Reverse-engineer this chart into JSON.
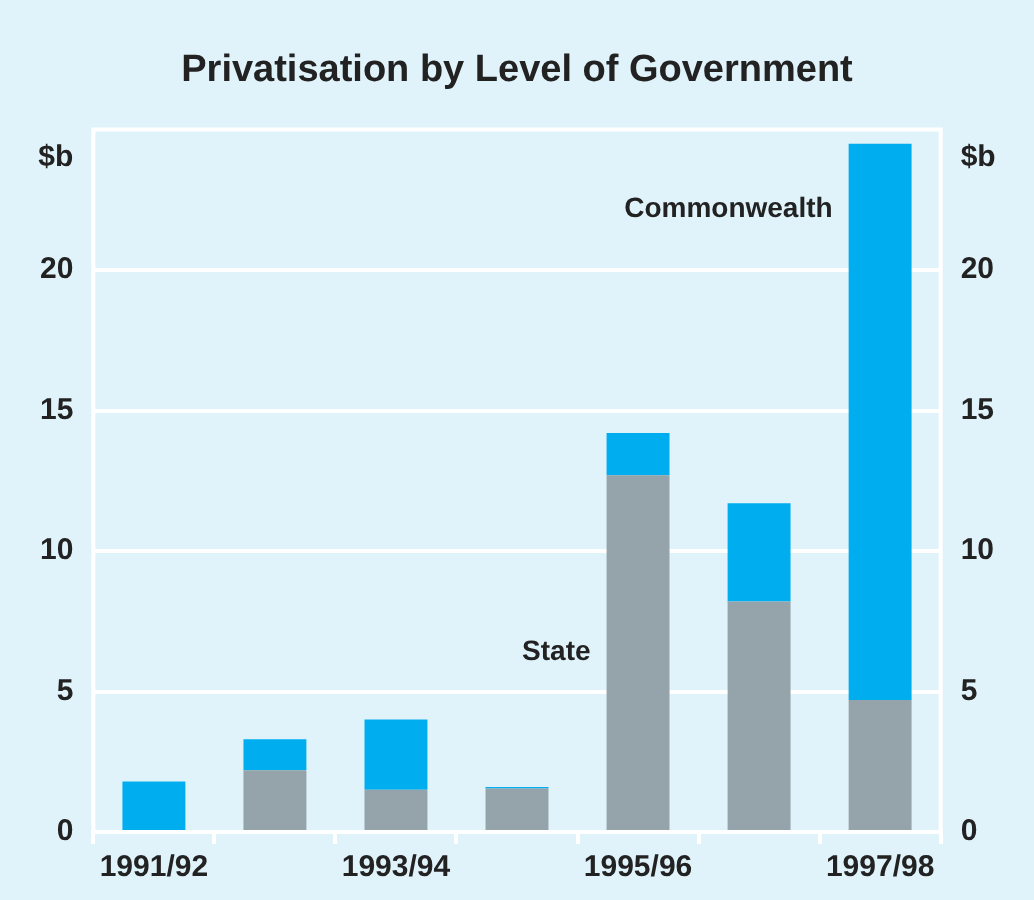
{
  "chart_data": {
    "type": "bar",
    "title": "Privatisation by Level of Government",
    "ylabel": "$b",
    "y2label": "$b",
    "categories": [
      "1991/92",
      null,
      "1993/94",
      null,
      "1995/96",
      null,
      "1997/98"
    ],
    "stacked": true,
    "series": [
      {
        "name": "State",
        "color": "#95a3aa",
        "values": [
          0,
          2.2,
          1.5,
          1.55,
          12.7,
          8.2,
          4.7
        ]
      },
      {
        "name": "Commonwealth",
        "color": "#00aeef",
        "values": [
          1.8,
          1.1,
          2.5,
          0.05,
          1.5,
          3.5,
          19.8
        ]
      }
    ],
    "ylim": [
      0,
      25
    ],
    "yticks": [
      0,
      5,
      10,
      15,
      20
    ],
    "y2lim": [
      0,
      25
    ],
    "y2ticks": [
      0,
      5,
      10,
      15,
      20
    ],
    "grid": "y",
    "legend": false
  }
}
